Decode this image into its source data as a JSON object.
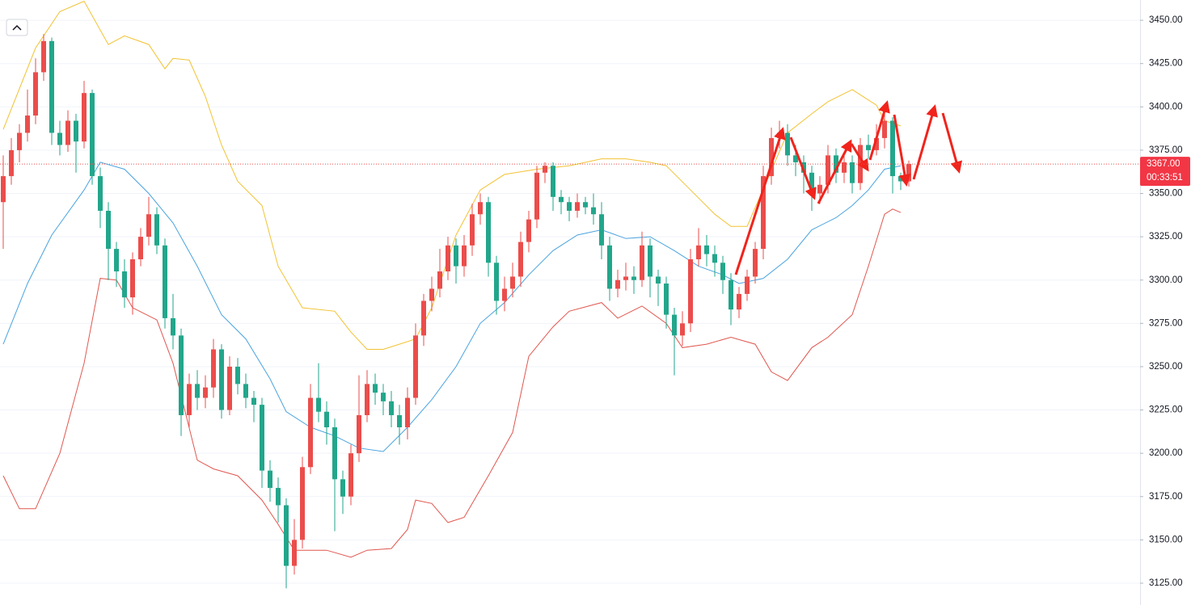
{
  "chart_data": {
    "type": "candlestick",
    "ylim": [
      3112.4,
      3461.7
    ],
    "yticks": [
      {
        "value": 3125,
        "label": "3125.00"
      },
      {
        "value": 3150,
        "label": "3150.00"
      },
      {
        "value": 3175,
        "label": "3175.00"
      },
      {
        "value": 3200,
        "label": "3200.00"
      },
      {
        "value": 3225,
        "label": "3225.00"
      },
      {
        "value": 3250,
        "label": "3250.00"
      },
      {
        "value": 3275,
        "label": "3275.00"
      },
      {
        "value": 3300,
        "label": "3300.00"
      },
      {
        "value": 3325,
        "label": "3325.00"
      },
      {
        "value": 3350,
        "label": "3350.00"
      },
      {
        "value": 3375,
        "label": "3375.00"
      },
      {
        "value": 3400,
        "label": "3400.00"
      },
      {
        "value": 3425,
        "label": "3425.00"
      },
      {
        "value": 3450,
        "label": "3450.00"
      }
    ],
    "grid": true,
    "up_color": "#eb4d4b",
    "down_color": "#22a68b",
    "open": [
      3345,
      3360,
      3375,
      3385,
      3395,
      3420,
      3438,
      3385,
      3378,
      3392,
      3380,
      3408,
      3360,
      3340,
      3318,
      3305,
      3290,
      3312,
      3325,
      3338,
      3320,
      3278,
      3268,
      3222,
      3240,
      3232,
      3238,
      3260,
      3225,
      3250,
      3240,
      3232,
      3228,
      3190,
      3180,
      3170,
      3135,
      3150,
      3192,
      3232,
      3224,
      3215,
      3185,
      3175,
      3200,
      3222,
      3240,
      3235,
      3230,
      3222,
      3215,
      3232,
      3268,
      3288,
      3295,
      3305,
      3320,
      3308,
      3320,
      3338,
      3345,
      3310,
      3288,
      3295,
      3302,
      3322,
      3335,
      3362,
      3366,
      3348,
      3345,
      3340,
      3345,
      3342,
      3338,
      3320,
      3295,
      3300,
      3302,
      3300,
      3320,
      3302,
      3298,
      3280,
      3268,
      3275,
      3312,
      3320,
      3315,
      3310,
      3300,
      3283,
      3292,
      3302,
      3318,
      3360,
      3382,
      3385,
      3372,
      3368,
      3362,
      3350,
      3355,
      3372,
      3362,
      3368,
      3356,
      3378,
      3375,
      3382,
      3392,
      3360,
      3357
    ],
    "high": [
      3372,
      3382,
      3390,
      3410,
      3428,
      3442,
      3440,
      3392,
      3398,
      3396,
      3415,
      3410,
      3365,
      3345,
      3322,
      3312,
      3316,
      3330,
      3348,
      3342,
      3324,
      3292,
      3272,
      3246,
      3248,
      3245,
      3266,
      3263,
      3256,
      3255,
      3246,
      3236,
      3232,
      3196,
      3186,
      3174,
      3162,
      3198,
      3240,
      3252,
      3230,
      3220,
      3190,
      3205,
      3245,
      3248,
      3246,
      3240,
      3236,
      3228,
      3238,
      3275,
      3292,
      3302,
      3318,
      3325,
      3324,
      3326,
      3344,
      3350,
      3348,
      3314,
      3302,
      3310,
      3328,
      3340,
      3366,
      3368,
      3368,
      3352,
      3348,
      3350,
      3348,
      3350,
      3345,
      3325,
      3306,
      3310,
      3308,
      3328,
      3324,
      3306,
      3302,
      3284,
      3282,
      3318,
      3330,
      3326,
      3320,
      3314,
      3304,
      3296,
      3306,
      3322,
      3366,
      3388,
      3392,
      3390,
      3378,
      3372,
      3366,
      3360,
      3378,
      3376,
      3374,
      3372,
      3382,
      3384,
      3390,
      3398,
      3394,
      3362,
      3369
    ],
    "low": [
      3318,
      3355,
      3368,
      3380,
      3390,
      3415,
      3378,
      3372,
      3374,
      3362,
      3376,
      3355,
      3330,
      3300,
      3296,
      3284,
      3280,
      3308,
      3320,
      3315,
      3272,
      3260,
      3210,
      3215,
      3225,
      3226,
      3232,
      3220,
      3222,
      3234,
      3226,
      3218,
      3180,
      3172,
      3160,
      3122,
      3130,
      3145,
      3188,
      3218,
      3205,
      3155,
      3165,
      3170,
      3195,
      3218,
      3228,
      3222,
      3215,
      3205,
      3208,
      3228,
      3262,
      3282,
      3290,
      3300,
      3298,
      3302,
      3314,
      3332,
      3302,
      3280,
      3282,
      3290,
      3296,
      3316,
      3330,
      3356,
      3340,
      3338,
      3334,
      3336,
      3338,
      3332,
      3312,
      3288,
      3290,
      3294,
      3292,
      3296,
      3290,
      3285,
      3272,
      3245,
      3262,
      3270,
      3308,
      3308,
      3302,
      3292,
      3274,
      3278,
      3288,
      3298,
      3312,
      3355,
      3376,
      3366,
      3360,
      3350,
      3340,
      3344,
      3350,
      3356,
      3356,
      3350,
      3352,
      3370,
      3372,
      3376,
      3350,
      3352,
      3354
    ],
    "close": [
      3360,
      3375,
      3385,
      3395,
      3420,
      3438,
      3385,
      3378,
      3392,
      3380,
      3408,
      3360,
      3340,
      3318,
      3305,
      3290,
      3312,
      3325,
      3338,
      3320,
      3278,
      3268,
      3222,
      3240,
      3232,
      3238,
      3260,
      3225,
      3250,
      3240,
      3232,
      3228,
      3190,
      3180,
      3170,
      3135,
      3150,
      3192,
      3232,
      3224,
      3215,
      3185,
      3175,
      3200,
      3222,
      3240,
      3235,
      3230,
      3222,
      3215,
      3232,
      3268,
      3288,
      3295,
      3305,
      3320,
      3308,
      3320,
      3338,
      3345,
      3310,
      3288,
      3295,
      3302,
      3322,
      3335,
      3362,
      3366,
      3348,
      3345,
      3340,
      3345,
      3342,
      3338,
      3320,
      3295,
      3300,
      3302,
      3300,
      3320,
      3302,
      3298,
      3280,
      3268,
      3275,
      3312,
      3320,
      3315,
      3310,
      3300,
      3283,
      3292,
      3302,
      3318,
      3360,
      3382,
      3385,
      3372,
      3368,
      3362,
      3350,
      3355,
      3372,
      3362,
      3368,
      3356,
      3378,
      3375,
      3382,
      3392,
      3360,
      3357,
      3367
    ],
    "bands": [
      {
        "color": "#f2c232",
        "x": [
          0,
          4,
          7,
          10,
          13,
          15,
          18,
          20,
          21,
          23,
          25,
          27,
          29,
          32,
          34,
          37,
          41,
          43,
          45,
          47,
          49,
          51,
          53,
          56,
          59,
          62,
          66,
          70,
          74,
          77,
          80,
          82,
          85,
          88,
          90,
          92,
          97,
          100,
          102,
          105,
          108,
          109,
          111
        ],
        "values": [
          3387,
          3434,
          3455,
          3461,
          3436,
          3441,
          3436,
          3422,
          3428,
          3427,
          3406,
          3378,
          3357,
          3343,
          3308,
          3284,
          3282,
          3270,
          3260,
          3260,
          3263,
          3266,
          3284,
          3326,
          3352,
          3361,
          3364,
          3366,
          3370,
          3370,
          3368,
          3366,
          3352,
          3338,
          3331,
          3331,
          3385,
          3396,
          3403,
          3410,
          3401,
          3392,
          3389
        ]
      },
      {
        "color": "#4aa3df",
        "x": [
          0,
          3,
          6,
          10,
          12,
          15,
          18,
          21,
          24,
          27,
          30,
          33,
          35,
          38,
          41,
          44,
          47,
          50,
          53,
          56,
          59,
          62,
          65,
          68,
          71,
          74,
          77,
          80,
          83,
          86,
          89,
          91,
          94,
          97,
          100,
          103,
          105,
          107,
          109,
          111
        ],
        "values": [
          3263,
          3298,
          3326,
          3352,
          3368,
          3364,
          3350,
          3333,
          3308,
          3280,
          3266,
          3243,
          3224,
          3215,
          3210,
          3203,
          3201,
          3215,
          3231,
          3250,
          3275,
          3287,
          3303,
          3317,
          3326,
          3329,
          3324,
          3325,
          3317,
          3308,
          3303,
          3298,
          3301,
          3312,
          3329,
          3336,
          3343,
          3352,
          3364,
          3366
        ]
      },
      {
        "color": "#e0574f",
        "x": [
          0,
          2,
          4,
          7,
          10,
          12,
          14,
          16,
          19,
          21,
          24,
          26,
          29,
          32,
          34,
          36,
          40,
          43,
          45,
          48,
          50,
          51,
          53,
          55,
          57,
          60,
          63,
          65,
          68,
          70,
          74,
          76,
          79,
          82,
          84,
          87,
          90,
          93,
          95,
          97,
          100,
          102,
          105,
          107,
          109,
          110,
          111
        ],
        "values": [
          3187,
          3168,
          3168,
          3200,
          3252,
          3301,
          3300,
          3284,
          3277,
          3252,
          3196,
          3191,
          3187,
          3173,
          3159,
          3144,
          3144,
          3140,
          3144,
          3145,
          3156,
          3173,
          3171,
          3160,
          3163,
          3187,
          3212,
          3256,
          3273,
          3282,
          3287,
          3278,
          3285,
          3275,
          3261,
          3263,
          3267,
          3263,
          3247,
          3242,
          3261,
          3267,
          3280,
          3308,
          3338,
          3341,
          3339
        ]
      }
    ],
    "price_label": {
      "value": 3367,
      "label": "3367.00"
    },
    "countdown": "00:33:51"
  }
}
